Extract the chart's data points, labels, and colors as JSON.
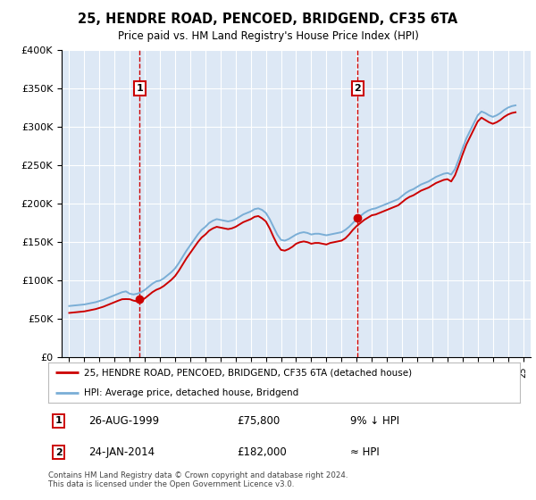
{
  "title": "25, HENDRE ROAD, PENCOED, BRIDGEND, CF35 6TA",
  "subtitle": "Price paid vs. HM Land Registry's House Price Index (HPI)",
  "footer": "Contains HM Land Registry data © Crown copyright and database right 2024.\nThis data is licensed under the Open Government Licence v3.0.",
  "legend_line1": "25, HENDRE ROAD, PENCOED, BRIDGEND, CF35 6TA (detached house)",
  "legend_line2": "HPI: Average price, detached house, Bridgend",
  "sale1_label": "1",
  "sale1_date": "26-AUG-1999",
  "sale1_price": "£75,800",
  "sale1_hpi": "9% ↓ HPI",
  "sale1_year": 1999.65,
  "sale1_value": 75800,
  "sale2_label": "2",
  "sale2_date": "24-JAN-2014",
  "sale2_price": "£182,000",
  "sale2_hpi": "≈ HPI",
  "sale2_year": 2014.07,
  "sale2_value": 182000,
  "price_color": "#cc0000",
  "hpi_color": "#7aaed6",
  "bg_color": "#dde8f5",
  "grid_color": "#ffffff",
  "ylim": [
    0,
    400000
  ],
  "xlim_start": 1994.5,
  "xlim_end": 2025.5,
  "yticks": [
    0,
    50000,
    100000,
    150000,
    200000,
    250000,
    300000,
    350000,
    400000
  ],
  "ytick_labels": [
    "£0",
    "£50K",
    "£100K",
    "£150K",
    "£200K",
    "£250K",
    "£300K",
    "£350K",
    "£400K"
  ],
  "hpi_data": {
    "years": [
      1995.0,
      1995.25,
      1995.5,
      1995.75,
      1996.0,
      1996.25,
      1996.5,
      1996.75,
      1997.0,
      1997.25,
      1997.5,
      1997.75,
      1998.0,
      1998.25,
      1998.5,
      1998.75,
      1999.0,
      1999.25,
      1999.5,
      1999.75,
      2000.0,
      2000.25,
      2000.5,
      2000.75,
      2001.0,
      2001.25,
      2001.5,
      2001.75,
      2002.0,
      2002.25,
      2002.5,
      2002.75,
      2003.0,
      2003.25,
      2003.5,
      2003.75,
      2004.0,
      2004.25,
      2004.5,
      2004.75,
      2005.0,
      2005.25,
      2005.5,
      2005.75,
      2006.0,
      2006.25,
      2006.5,
      2006.75,
      2007.0,
      2007.25,
      2007.5,
      2007.75,
      2008.0,
      2008.25,
      2008.5,
      2008.75,
      2009.0,
      2009.25,
      2009.5,
      2009.75,
      2010.0,
      2010.25,
      2010.5,
      2010.75,
      2011.0,
      2011.25,
      2011.5,
      2011.75,
      2012.0,
      2012.25,
      2012.5,
      2012.75,
      2013.0,
      2013.25,
      2013.5,
      2013.75,
      2014.0,
      2014.25,
      2014.5,
      2014.75,
      2015.0,
      2015.25,
      2015.5,
      2015.75,
      2016.0,
      2016.25,
      2016.5,
      2016.75,
      2017.0,
      2017.25,
      2017.5,
      2017.75,
      2018.0,
      2018.25,
      2018.5,
      2018.75,
      2019.0,
      2019.25,
      2019.5,
      2019.75,
      2020.0,
      2020.25,
      2020.5,
      2020.75,
      2021.0,
      2021.25,
      2021.5,
      2021.75,
      2022.0,
      2022.25,
      2022.5,
      2022.75,
      2023.0,
      2023.25,
      2023.5,
      2023.75,
      2024.0,
      2024.25,
      2024.5
    ],
    "values": [
      67000,
      67500,
      68000,
      68500,
      69000,
      70000,
      71000,
      72000,
      73500,
      75000,
      77000,
      79000,
      81000,
      83000,
      85000,
      86000,
      83000,
      82000,
      83000,
      85000,
      88000,
      92000,
      96000,
      99000,
      100000,
      103000,
      107000,
      111000,
      116000,
      123000,
      131000,
      139000,
      146000,
      153000,
      160000,
      166000,
      170000,
      175000,
      178000,
      180000,
      179000,
      178000,
      177000,
      178000,
      180000,
      183000,
      186000,
      188000,
      190000,
      193000,
      194000,
      192000,
      188000,
      180000,
      170000,
      160000,
      153000,
      152000,
      154000,
      157000,
      160000,
      162000,
      163000,
      162000,
      160000,
      161000,
      161000,
      160000,
      159000,
      160000,
      161000,
      162000,
      163000,
      166000,
      170000,
      175000,
      180000,
      184000,
      188000,
      191000,
      193000,
      194000,
      196000,
      198000,
      200000,
      202000,
      204000,
      206000,
      210000,
      214000,
      217000,
      219000,
      222000,
      225000,
      227000,
      229000,
      232000,
      235000,
      237000,
      239000,
      240000,
      238000,
      245000,
      258000,
      272000,
      285000,
      295000,
      305000,
      315000,
      320000,
      318000,
      315000,
      313000,
      315000,
      318000,
      322000,
      325000,
      327000,
      328000
    ]
  },
  "price_data": {
    "years": [
      1995.0,
      1995.25,
      1995.5,
      1995.75,
      1996.0,
      1996.25,
      1996.5,
      1996.75,
      1997.0,
      1997.25,
      1997.5,
      1997.75,
      1998.0,
      1998.25,
      1998.5,
      1998.75,
      1999.0,
      1999.25,
      1999.5,
      1999.75,
      2000.0,
      2000.25,
      2000.5,
      2000.75,
      2001.0,
      2001.25,
      2001.5,
      2001.75,
      2002.0,
      2002.25,
      2002.5,
      2002.75,
      2003.0,
      2003.25,
      2003.5,
      2003.75,
      2004.0,
      2004.25,
      2004.5,
      2004.75,
      2005.0,
      2005.25,
      2005.5,
      2005.75,
      2006.0,
      2006.25,
      2006.5,
      2006.75,
      2007.0,
      2007.25,
      2007.5,
      2007.75,
      2008.0,
      2008.25,
      2008.5,
      2008.75,
      2009.0,
      2009.25,
      2009.5,
      2009.75,
      2010.0,
      2010.25,
      2010.5,
      2010.75,
      2011.0,
      2011.25,
      2011.5,
      2011.75,
      2012.0,
      2012.25,
      2012.5,
      2012.75,
      2013.0,
      2013.25,
      2013.5,
      2013.75,
      2014.0,
      2014.25,
      2014.5,
      2014.75,
      2015.0,
      2015.25,
      2015.5,
      2015.75,
      2016.0,
      2016.25,
      2016.5,
      2016.75,
      2017.0,
      2017.25,
      2017.5,
      2017.75,
      2018.0,
      2018.25,
      2018.5,
      2018.75,
      2019.0,
      2019.25,
      2019.5,
      2019.75,
      2020.0,
      2020.25,
      2020.5,
      2020.75,
      2021.0,
      2021.25,
      2021.5,
      2021.75,
      2022.0,
      2022.25,
      2022.5,
      2022.75,
      2023.0,
      2023.25,
      2023.5,
      2023.75,
      2024.0,
      2024.25,
      2024.5
    ],
    "values": [
      58000,
      58500,
      59000,
      59500,
      60000,
      61000,
      62000,
      63000,
      64500,
      66000,
      68000,
      70000,
      72000,
      74000,
      75800,
      76000,
      75800,
      74000,
      73000,
      74000,
      77000,
      81000,
      85000,
      88000,
      90000,
      93000,
      97000,
      101000,
      106000,
      113000,
      121000,
      129000,
      136000,
      143000,
      150000,
      156000,
      160000,
      165000,
      168000,
      170000,
      169000,
      168000,
      167000,
      168000,
      170000,
      173000,
      176000,
      178000,
      180000,
      183000,
      184000,
      181000,
      177000,
      168000,
      157000,
      147000,
      140000,
      139000,
      141000,
      144000,
      148000,
      150000,
      151000,
      150000,
      148000,
      149000,
      149000,
      148000,
      147000,
      149000,
      150000,
      151000,
      152000,
      155000,
      160000,
      166000,
      171000,
      175000,
      179000,
      182000,
      185000,
      186000,
      188000,
      190000,
      192000,
      194000,
      196000,
      198000,
      202000,
      206000,
      209000,
      211000,
      214000,
      217000,
      219000,
      221000,
      224000,
      227000,
      229000,
      231000,
      232000,
      229000,
      237000,
      250000,
      264000,
      277000,
      287000,
      297000,
      307000,
      312000,
      309000,
      306000,
      304000,
      306000,
      309000,
      313000,
      316000,
      318000,
      319000
    ]
  }
}
